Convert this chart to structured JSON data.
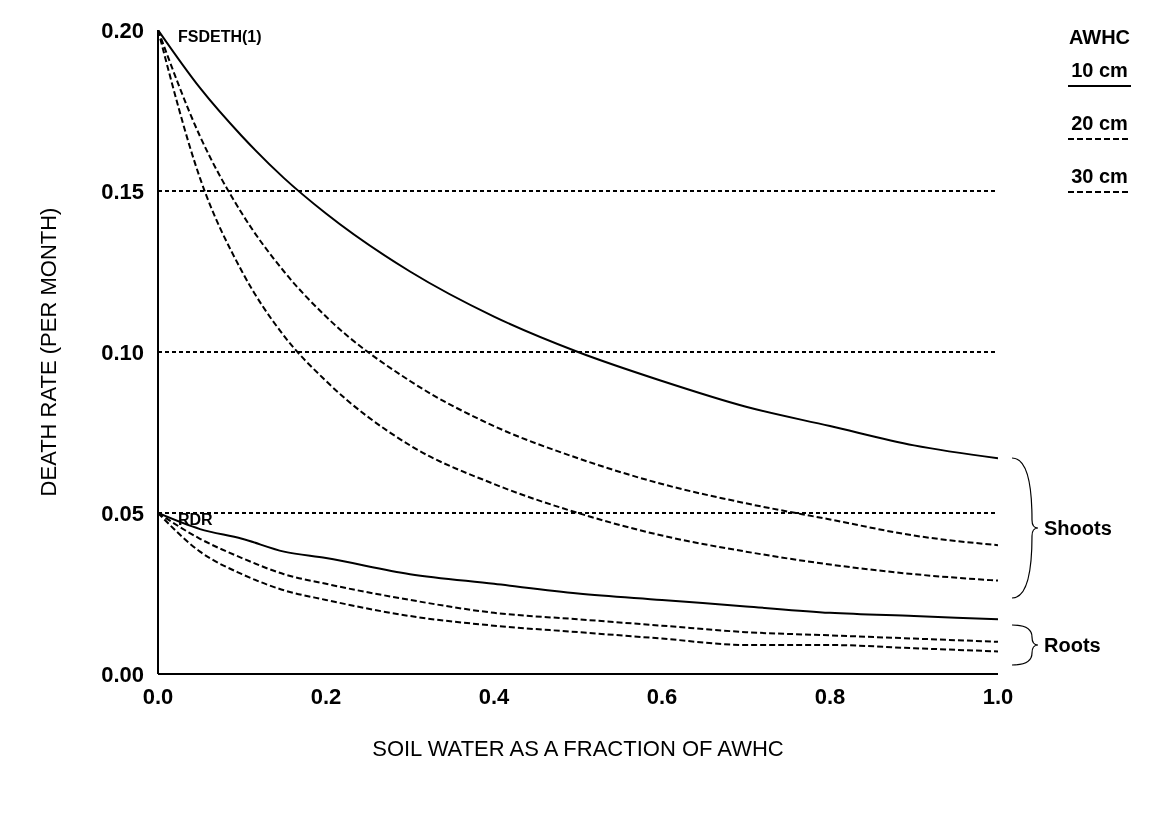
{
  "chart_data": {
    "type": "line",
    "xlabel": "SOIL WATER AS A FRACTION OF AWHC",
    "ylabel": "DEATH RATE (PER MONTH)",
    "legend_title": "AWHC",
    "x": [
      0,
      0.05,
      0.1,
      0.15,
      0.2,
      0.3,
      0.4,
      0.5,
      0.6,
      0.7,
      0.8,
      0.9,
      1
    ],
    "series": [
      {
        "name": "10 cm",
        "color": "#000000",
        "line_style": "solid",
        "values": [
          0.2,
          0.182,
          0.167,
          0.154,
          0.143,
          0.125,
          0.111,
          0.1,
          0.091,
          0.083,
          0.077,
          0.071,
          0.067
        ]
      },
      {
        "name": "20 cm",
        "color": "#000000",
        "line_style": "dashed",
        "values": [
          0.2,
          0.167,
          0.143,
          0.125,
          0.111,
          0.091,
          0.077,
          0.067,
          0.059,
          0.053,
          0.048,
          0.043,
          0.04
        ]
      },
      {
        "name": "30 cm",
        "color": "#000000",
        "line_style": "dashed",
        "values": [
          0.2,
          0.154,
          0.125,
          0.105,
          0.091,
          0.071,
          0.059,
          0.05,
          0.043,
          0.038,
          0.034,
          0.031,
          0.029
        ]
      },
      {
        "color": "#000000",
        "line_style": "solid",
        "values": [
          0.05,
          0.045,
          0.042,
          0.038,
          0.036,
          0.031,
          0.028,
          0.025,
          0.023,
          0.021,
          0.019,
          0.018,
          0.017
        ]
      },
      {
        "color": "#000000",
        "line_style": "dashed",
        "values": [
          0.05,
          0.042,
          0.036,
          0.031,
          0.028,
          0.023,
          0.019,
          0.017,
          0.015,
          0.013,
          0.012,
          0.011,
          0.01
        ]
      },
      {
        "color": "#000000",
        "line_style": "dashed",
        "values": [
          0.05,
          0.038,
          0.031,
          0.026,
          0.023,
          0.018,
          0.015,
          0.013,
          0.011,
          0.009,
          0.009,
          0.008,
          0.007
        ]
      }
    ],
    "xlim": [
      0,
      1
    ],
    "xticks": [
      {
        "value": 0,
        "label": "0.0"
      },
      {
        "value": 0.2,
        "label": "0.2"
      },
      {
        "value": 0.4,
        "label": "0.4"
      },
      {
        "value": 0.6,
        "label": "0.6"
      },
      {
        "value": 0.8,
        "label": "0.8"
      },
      {
        "value": 1,
        "label": "1.0"
      }
    ],
    "ylim": [
      0,
      0.2
    ],
    "yticks": [
      {
        "value": 0,
        "label": "0.00"
      },
      {
        "value": 0.05,
        "label": "0.05"
      },
      {
        "value": 0.1,
        "label": "0.10"
      },
      {
        "value": 0.15,
        "label": "0.15"
      },
      {
        "value": 0.2,
        "label": "0.20"
      }
    ],
    "grid": "y",
    "legend": "top right",
    "marker": "none",
    "annotations": [
      {
        "text": "FSDETH(1)",
        "x": 0,
        "y": 0.2
      },
      {
        "text": "RDR",
        "x": 0,
        "y": 0.05
      },
      "Shoots",
      "Roots"
    ]
  }
}
